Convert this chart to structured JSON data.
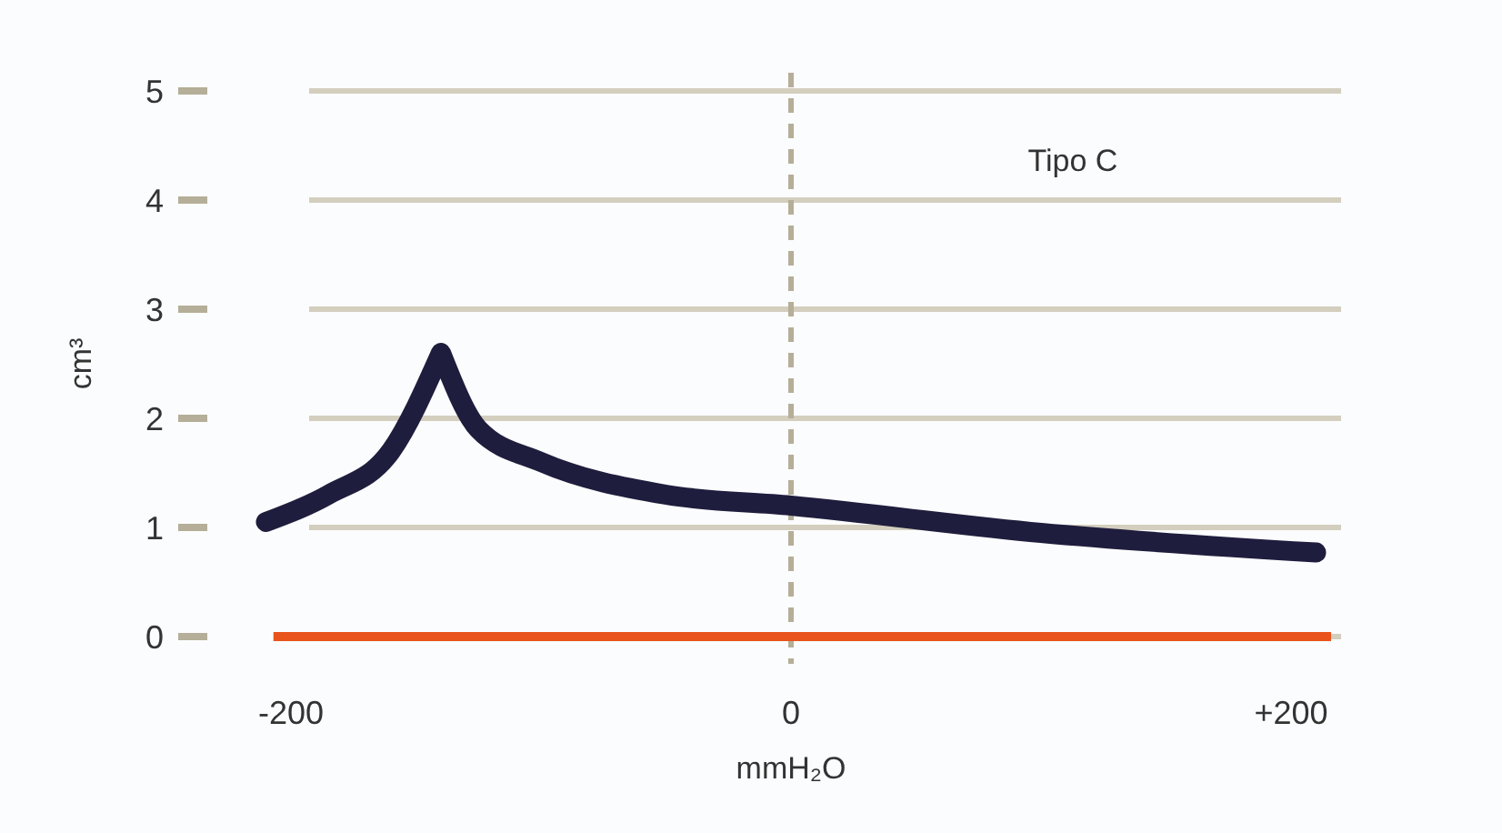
{
  "chart_data": {
    "type": "line",
    "xlabel": "mmH₂O",
    "ylabel": "cm³",
    "annotations": [
      "Tipo C"
    ],
    "x": [
      -210,
      -185,
      -160,
      -140,
      -125,
      -100,
      -50,
      0,
      100,
      210
    ],
    "series": [
      {
        "color": "#1f1d3d",
        "values": [
          1.05,
          1.3,
          1.7,
          2.6,
          1.9,
          1.6,
          1.3,
          1.2,
          0.95,
          0.77
        ]
      },
      {
        "color": "#e8541c",
        "x": [
          -207,
          216
        ],
        "values": [
          0,
          0
        ]
      }
    ],
    "xlim": [
      -212,
      220
    ],
    "xticks": [
      -200,
      0,
      {
        "value": 200,
        "label": "+200"
      }
    ],
    "ylim": [
      -0.25,
      5
    ],
    "yticks": [
      0,
      1,
      2,
      3,
      4,
      5
    ],
    "grid": "y",
    "marker": "none",
    "line_style": "solid",
    "ref_lines": [
      {
        "axis": "x",
        "value": 0,
        "color": "#b5ae98",
        "line_style": "dashed"
      }
    ]
  }
}
